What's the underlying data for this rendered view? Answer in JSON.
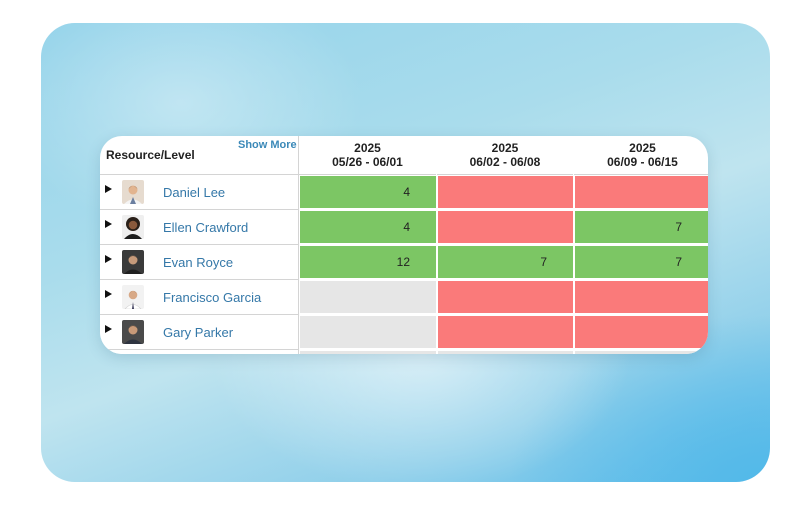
{
  "table": {
    "header_label": "Resource/Level",
    "show_more_label": "Show More",
    "columns": [
      {
        "year": "2025",
        "range": "05/26 - 06/01"
      },
      {
        "year": "2025",
        "range": "06/02 - 06/08"
      },
      {
        "year": "2025",
        "range": "06/09 - 06/15"
      }
    ],
    "rows": [
      {
        "name": "Daniel Lee",
        "cells": [
          {
            "value": "4",
            "status": "green"
          },
          {
            "value": "",
            "status": "red"
          },
          {
            "value": "",
            "status": "red"
          }
        ]
      },
      {
        "name": "Ellen Crawford",
        "cells": [
          {
            "value": "4",
            "status": "green"
          },
          {
            "value": "",
            "status": "red"
          },
          {
            "value": "7",
            "status": "green"
          }
        ]
      },
      {
        "name": "Evan Royce",
        "cells": [
          {
            "value": "12",
            "status": "green"
          },
          {
            "value": "7",
            "status": "green"
          },
          {
            "value": "7",
            "status": "green"
          }
        ]
      },
      {
        "name": "Francisco Garcia",
        "cells": [
          {
            "value": "",
            "status": "gray"
          },
          {
            "value": "",
            "status": "red"
          },
          {
            "value": "",
            "status": "red"
          }
        ]
      },
      {
        "name": "Gary Parker",
        "cells": [
          {
            "value": "",
            "status": "gray"
          },
          {
            "value": "",
            "status": "red"
          },
          {
            "value": "",
            "status": "red"
          }
        ]
      }
    ]
  },
  "colors": {
    "green": "#7cc664",
    "red": "#fa7a7a",
    "gray": "#e6e6e6",
    "link": "#3578a8"
  },
  "icons": {
    "expander": "triangle-right-icon",
    "avatar": "person-photo"
  }
}
